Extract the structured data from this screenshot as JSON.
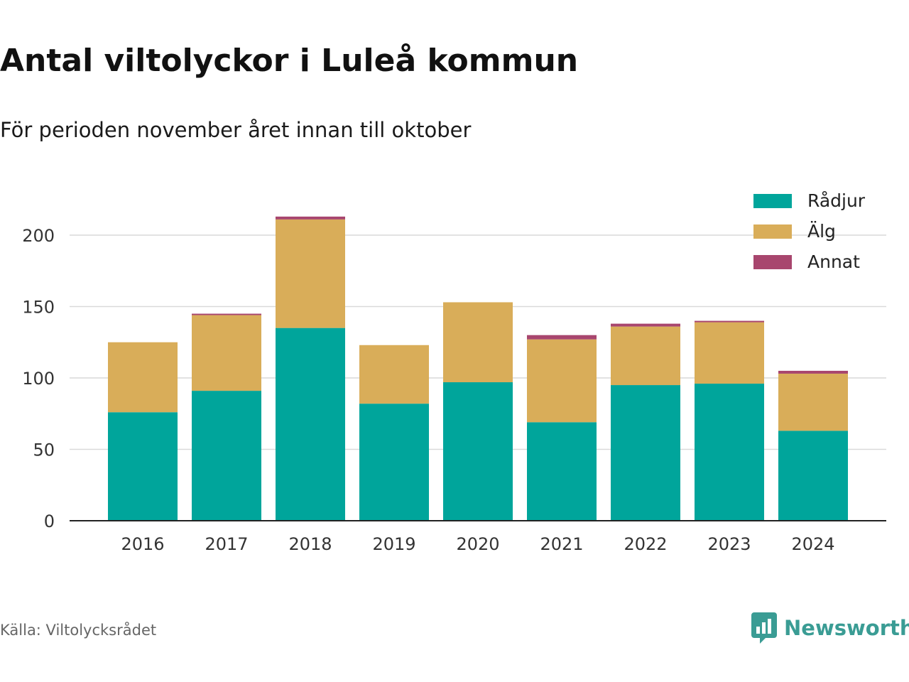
{
  "colors": {
    "radjur": "#00A59B",
    "alg": "#D9AD59",
    "annat": "#A8466E",
    "grid": "#d9d9d9",
    "axis": "#222222",
    "brand": "#3a9c94"
  },
  "brand": {
    "name": "Newsworthy",
    "icon": "bar-chart-speech-bubble-icon"
  },
  "source": "Källa: Viltolycksrådet",
  "chart_data": {
    "type": "bar",
    "stacked": true,
    "title": "Antal viltolyckor i Luleå kommun",
    "subtitle": "För perioden november året innan till oktober",
    "categories": [
      "2016",
      "2017",
      "2018",
      "2019",
      "2020",
      "2021",
      "2022",
      "2023",
      "2024"
    ],
    "series": [
      {
        "name": "Rådjur",
        "color": "#00A59B",
        "values": [
          76,
          91,
          135,
          82,
          97,
          69,
          95,
          96,
          63
        ]
      },
      {
        "name": "Älg",
        "color": "#D9AD59",
        "values": [
          49,
          53,
          76,
          41,
          56,
          58,
          41,
          43,
          40
        ]
      },
      {
        "name": "Annat",
        "color": "#A8466E",
        "values": [
          0,
          1,
          2,
          0,
          0,
          3,
          2,
          1,
          2
        ]
      }
    ],
    "yticks": [
      0,
      50,
      100,
      150,
      200
    ],
    "ylim": [
      0,
      225
    ],
    "grid": true,
    "legend": "top-right"
  }
}
